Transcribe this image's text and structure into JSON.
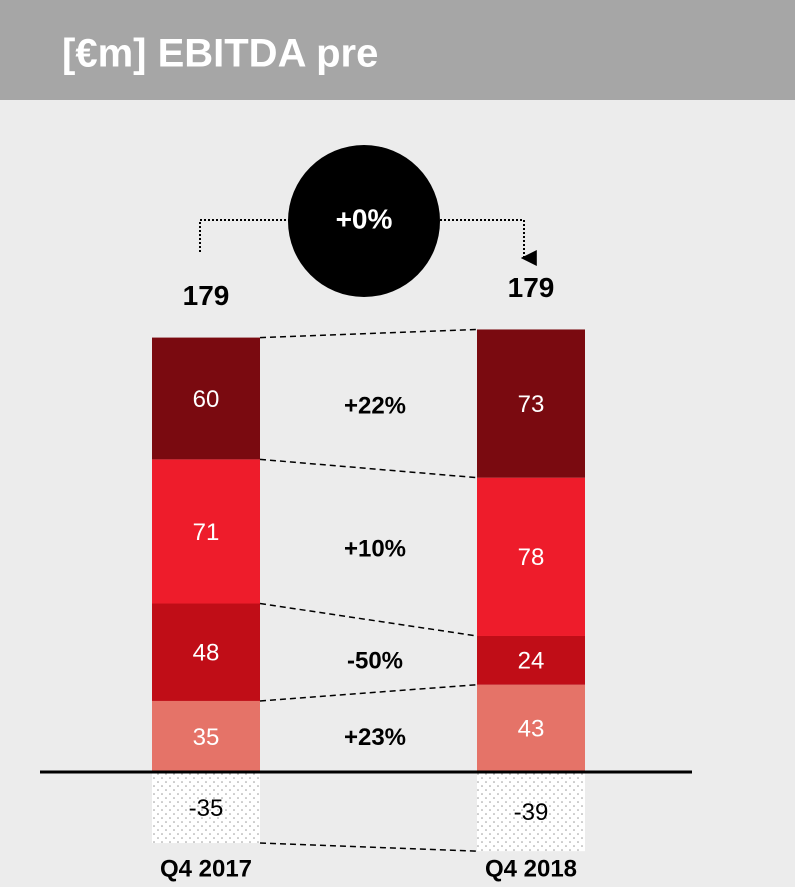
{
  "chart_data": {
    "type": "stacked_bar",
    "title": "[€m] EBITDA pre",
    "categories": [
      "Q4 2017",
      "Q4 2018"
    ],
    "series": [
      {
        "color": "#e57368",
        "values": [
          35,
          43
        ]
      },
      {
        "color": "#c00d17",
        "values": [
          48,
          24
        ]
      },
      {
        "color": "#ee1c2b",
        "values": [
          71,
          78
        ]
      },
      {
        "color": "#7a0a10",
        "values": [
          60,
          73
        ]
      },
      {
        "color": "#ffffff",
        "values": [
          -35,
          -39
        ]
      }
    ],
    "totals": [
      179,
      179
    ],
    "changes": [
      "+23%",
      "-50%",
      "+10%",
      "+22%"
    ],
    "total_change": "+0%"
  }
}
